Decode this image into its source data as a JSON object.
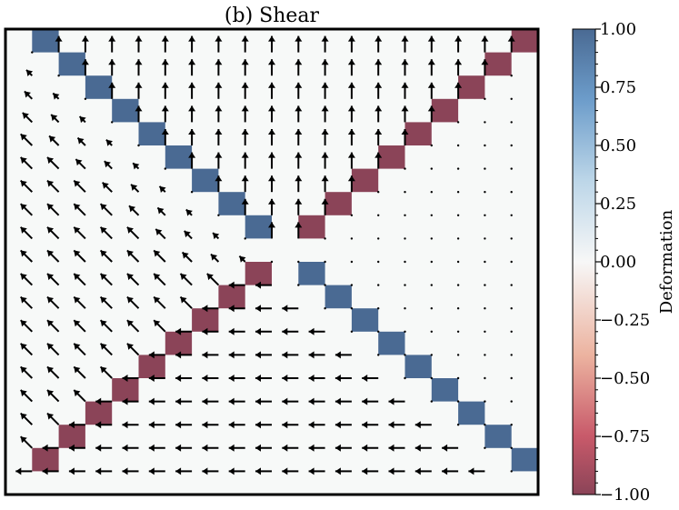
{
  "chart_data": {
    "type": "heatmap",
    "title": "(b) Shear",
    "xlabel": "",
    "ylabel": "",
    "grid_size": 20,
    "grid": false,
    "legend_placement": "none",
    "cell_value_ranges": {
      "blue_diagonal": {
        "value": 1.0,
        "cells": "row 0..8 at col=row+1, row 9..19 at col=row+1 (lower branch)"
      },
      "red_diagonal": {
        "value": -1.0,
        "cells": "anti-diagonal mirror"
      }
    },
    "colorbar": {
      "label": "Deformation",
      "min": -1.0,
      "max": 1.0,
      "ticks": [
        "1.00",
        "0.75",
        "0.50",
        "0.25",
        "0.00",
        "−0.25",
        "−0.50",
        "−0.75",
        "−1.00"
      ],
      "tick_values": [
        1.0,
        0.75,
        0.5,
        0.25,
        0.0,
        -0.25,
        -0.5,
        -0.75,
        -1.0
      ],
      "colormap_stops": [
        {
          "value": -1.0,
          "color": "#8b4458"
        },
        {
          "value": -0.75,
          "color": "#c85a6a"
        },
        {
          "value": -0.4,
          "color": "#ecb3a0"
        },
        {
          "value": 0.0,
          "color": "#f7f7f7"
        },
        {
          "value": 0.35,
          "color": "#bcd6e8"
        },
        {
          "value": 0.7,
          "color": "#6c9cca"
        },
        {
          "value": 1.0,
          "color": "#4a6a93"
        }
      ]
    },
    "blue_cells": [
      [
        0,
        1
      ],
      [
        1,
        2
      ],
      [
        2,
        3
      ],
      [
        3,
        4
      ],
      [
        4,
        5
      ],
      [
        5,
        6
      ],
      [
        6,
        7
      ],
      [
        7,
        8
      ],
      [
        8,
        9
      ],
      [
        10,
        11
      ],
      [
        11,
        12
      ],
      [
        12,
        13
      ],
      [
        13,
        14
      ],
      [
        14,
        15
      ],
      [
        15,
        16
      ],
      [
        16,
        17
      ],
      [
        17,
        18
      ],
      [
        18,
        19
      ]
    ],
    "red_cells": [
      [
        0,
        19
      ],
      [
        1,
        18
      ],
      [
        2,
        17
      ],
      [
        3,
        16
      ],
      [
        4,
        15
      ],
      [
        5,
        14
      ],
      [
        6,
        13
      ],
      [
        7,
        12
      ],
      [
        8,
        11
      ],
      [
        10,
        9
      ],
      [
        11,
        8
      ],
      [
        12,
        7
      ],
      [
        13,
        6
      ],
      [
        14,
        5
      ],
      [
        15,
        4
      ],
      [
        16,
        3
      ],
      [
        17,
        2
      ],
      [
        18,
        1
      ]
    ],
    "vector_field": {
      "description": "upward arrows above blue diagonal, diagonal up-left arrows in left wedge, leftward arrows below red lower branch, dots elsewhere",
      "colors": {
        "background": "#f7f9f8",
        "arrow": "#000000",
        "blue": "#4a6a93",
        "red": "#8b4458"
      }
    }
  }
}
